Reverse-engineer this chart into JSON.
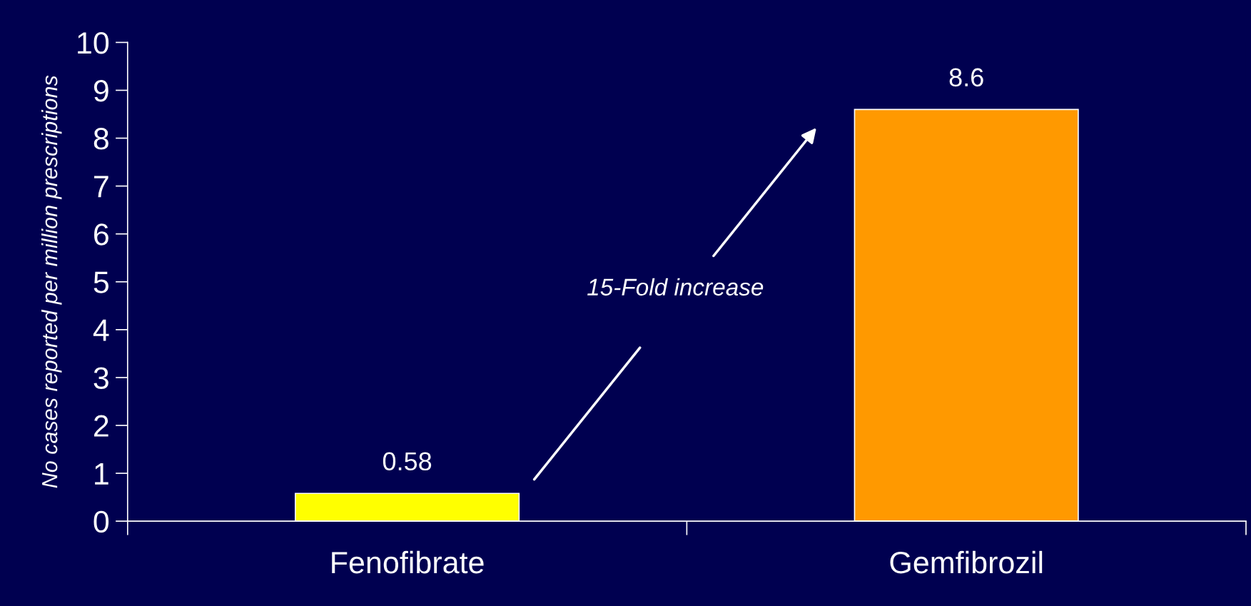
{
  "chart_data": {
    "type": "bar",
    "categories": [
      "Fenofibrate",
      "Gemfibrozil"
    ],
    "values": [
      0.58,
      8.6
    ],
    "colors": [
      "#ffff00",
      "#ff9900"
    ],
    "ylabel": "No cases reported per million prescriptions",
    "ylim": [
      0,
      10
    ],
    "yticks": [
      0,
      1,
      2,
      3,
      4,
      5,
      6,
      7,
      8,
      9,
      10
    ],
    "data_labels": true,
    "grid": false,
    "legend": false,
    "annotations": [
      "15-Fold increase"
    ]
  }
}
